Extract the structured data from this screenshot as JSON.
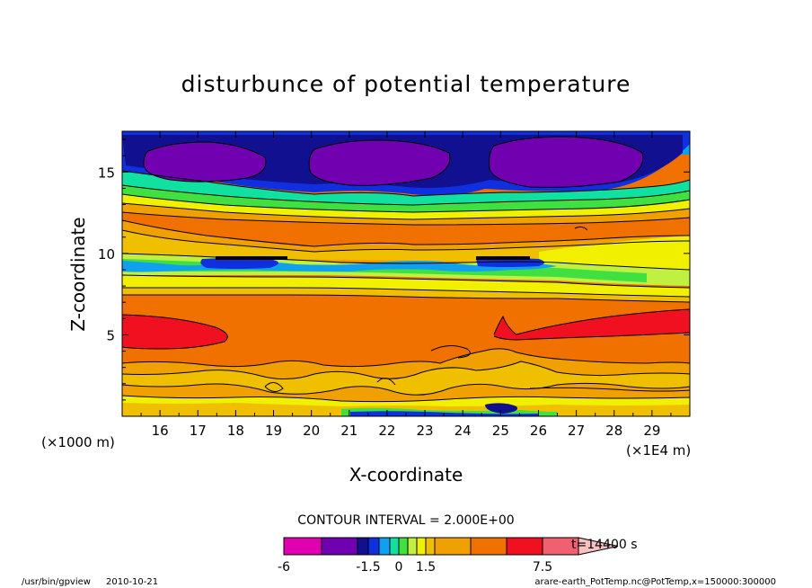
{
  "chart_data": {
    "type": "heatmap",
    "title": "disturbunce of potential temperature",
    "xlabel": "X-coordinate",
    "ylabel": "Z-coordinate",
    "x_unit_left": "(×1000 m)",
    "x_unit_right": "(×1E4 m)",
    "x_ticks": [
      "16",
      "17",
      "18",
      "19",
      "20",
      "21",
      "22",
      "23",
      "24",
      "25",
      "26",
      "27",
      "28",
      "29"
    ],
    "y_ticks": [
      "5",
      "10",
      "15"
    ],
    "xlim": [
      15,
      30
    ],
    "ylim": [
      0,
      17.5
    ],
    "ylim_units": "×1000 m",
    "contour_interval_text": "CONTOUR INTERVAL = 2.000E+00",
    "colorbar": {
      "levels": [
        -6,
        -4.5,
        -3,
        -1.5,
        -1,
        -0.5,
        0,
        0.5,
        1,
        1.5,
        3,
        4.5,
        6,
        7.5
      ],
      "tick_labels": [
        "-6",
        "-1.5",
        "0",
        "1.5",
        "7.5"
      ],
      "colors": [
        "#e000b0",
        "#7000b0",
        "#101090",
        "#1030e0",
        "#10a0f0",
        "#10e0a0",
        "#40e040",
        "#c0f040",
        "#f0f000",
        "#f0c000",
        "#f0a000",
        "#f07000",
        "#f01020",
        "#f06070",
        "#f8c0c0"
      ],
      "time_label": "t=14400 s"
    },
    "layers": [
      {
        "z_range": [
          16,
          17.5
        ],
        "value": -4.5,
        "note": "violet cells"
      },
      {
        "z_range": [
          14.5,
          16
        ],
        "value": -3
      },
      {
        "z_range": [
          13,
          14.5
        ],
        "value": 1.5
      },
      {
        "z_range": [
          10,
          13
        ],
        "value": 4.5
      },
      {
        "z_range": [
          8,
          10
        ],
        "value": 0
      },
      {
        "z_range": [
          4,
          8
        ],
        "value": 4.5
      },
      {
        "z_range": [
          0,
          4
        ],
        "value": 1.5
      }
    ]
  },
  "footer": {
    "program": "/usr/bin/gpview",
    "date": "2010-10-21",
    "source": "arare-earth_PotTemp.nc@PotTemp,x=150000:300000"
  }
}
